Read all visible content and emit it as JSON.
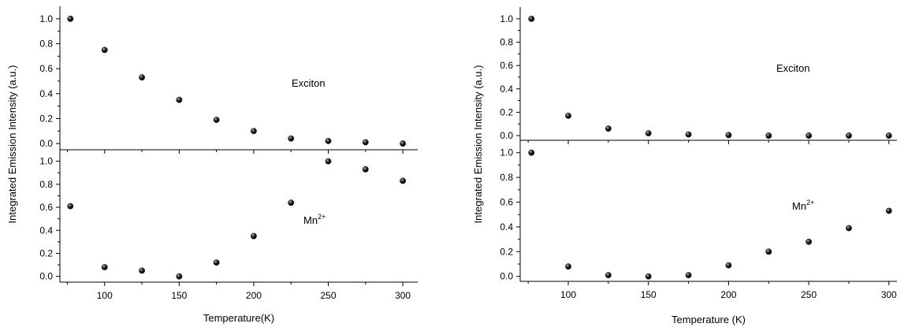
{
  "chart_data": [
    {
      "type": "scatter",
      "ylabel": "Integrated Emission Intensity (a.u.)",
      "xlabel": "Temperature(K)",
      "xlim": [
        70,
        310
      ],
      "xticks": [
        100,
        150,
        200,
        250,
        300
      ],
      "grid": false,
      "legend": "none",
      "marker_color": "#111111",
      "panels": [
        {
          "name": "top",
          "annotation": "Exciton",
          "ylim": [
            -0.05,
            1.1
          ],
          "yticks": [
            "0.0",
            "0.2",
            "0.4",
            "0.6",
            "0.8",
            "1.0"
          ],
          "x": [
            77,
            100,
            125,
            150,
            175,
            200,
            225,
            250,
            275,
            300
          ],
          "y": [
            1.0,
            0.75,
            0.53,
            0.35,
            0.19,
            0.1,
            0.04,
            0.02,
            0.01,
            0.0
          ]
        },
        {
          "name": "bottom",
          "annotation": "Mn",
          "annotation_sup": "2+",
          "ylim": [
            -0.05,
            1.1
          ],
          "yticks": [
            "0.0",
            "0.2",
            "0.4",
            "0.6",
            "0.8",
            "1.0"
          ],
          "x": [
            77,
            100,
            125,
            150,
            175,
            200,
            225,
            250,
            275,
            300
          ],
          "y": [
            0.61,
            0.08,
            0.05,
            0.0,
            0.12,
            0.35,
            0.64,
            1.0,
            0.93,
            0.83
          ]
        }
      ]
    },
    {
      "type": "scatter",
      "ylabel": "Integrated Emission Intensity (a.u.)",
      "xlabel": "Temperature (K)",
      "xlim": [
        70,
        305
      ],
      "xticks": [
        100,
        150,
        200,
        250,
        300
      ],
      "grid": false,
      "legend": "none",
      "marker_color": "#111111",
      "panels": [
        {
          "name": "top",
          "annotation": "Exciton",
          "ylim": [
            -0.04,
            1.1
          ],
          "yticks": [
            "0.0",
            "0.2",
            "0.4",
            "0.6",
            "0.8",
            "1.0"
          ],
          "x": [
            77,
            100,
            125,
            150,
            175,
            200,
            225,
            250,
            275,
            300
          ],
          "y": [
            1.0,
            0.17,
            0.06,
            0.02,
            0.01,
            0.005,
            0.0,
            0.0,
            0.0,
            0.0
          ]
        },
        {
          "name": "bottom",
          "annotation": "Mn",
          "annotation_sup": "2+",
          "ylim": [
            -0.04,
            1.1
          ],
          "yticks": [
            "0.0",
            "0.2",
            "0.4",
            "0.6",
            "0.8",
            "1.0"
          ],
          "x": [
            77,
            100,
            125,
            150,
            175,
            200,
            225,
            250,
            275,
            300
          ],
          "y": [
            1.0,
            0.08,
            0.01,
            0.0,
            0.01,
            0.09,
            0.2,
            0.28,
            0.39,
            0.53
          ]
        }
      ]
    }
  ]
}
